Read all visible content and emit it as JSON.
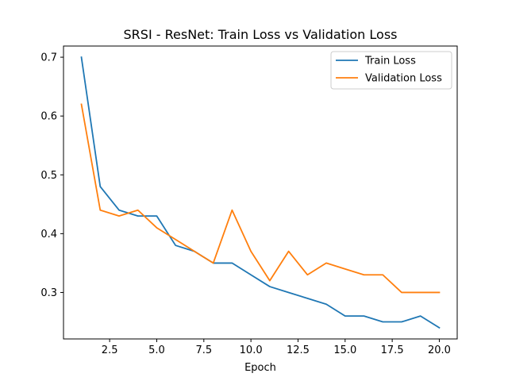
{
  "chart_data": {
    "type": "line",
    "title": "SRSI - ResNet: Train Loss vs Validation Loss",
    "xlabel": "Epoch",
    "ylabel": "",
    "xlim": [
      0.05,
      20.95
    ],
    "ylim": [
      0.221,
      0.719
    ],
    "xticks": [
      2.5,
      5.0,
      7.5,
      10.0,
      12.5,
      15.0,
      17.5,
      20.0
    ],
    "xtick_labels": [
      "2.5",
      "5.0",
      "7.5",
      "10.0",
      "12.5",
      "15.0",
      "17.5",
      "20.0"
    ],
    "yticks": [
      0.3,
      0.4,
      0.5,
      0.6,
      0.7
    ],
    "ytick_labels": [
      "0.3",
      "0.4",
      "0.5",
      "0.6",
      "0.7"
    ],
    "grid": false,
    "legend_position": "top-right",
    "x": [
      1,
      2,
      3,
      4,
      5,
      6,
      7,
      8,
      9,
      10,
      11,
      12,
      13,
      14,
      15,
      16,
      17,
      18,
      19,
      20
    ],
    "series": [
      {
        "name": "Train Loss",
        "color": "#1f77b4",
        "values": [
          0.7,
          0.48,
          0.44,
          0.43,
          0.43,
          0.38,
          0.37,
          0.35,
          0.35,
          0.33,
          0.31,
          0.3,
          0.29,
          0.28,
          0.26,
          0.26,
          0.25,
          0.25,
          0.26,
          0.24
        ]
      },
      {
        "name": "Validation Loss",
        "color": "#ff7f0e",
        "values": [
          0.62,
          0.44,
          0.43,
          0.44,
          0.41,
          0.39,
          0.37,
          0.35,
          0.44,
          0.37,
          0.32,
          0.37,
          0.33,
          0.35,
          0.34,
          0.33,
          0.33,
          0.3,
          0.3,
          0.3
        ]
      }
    ]
  }
}
